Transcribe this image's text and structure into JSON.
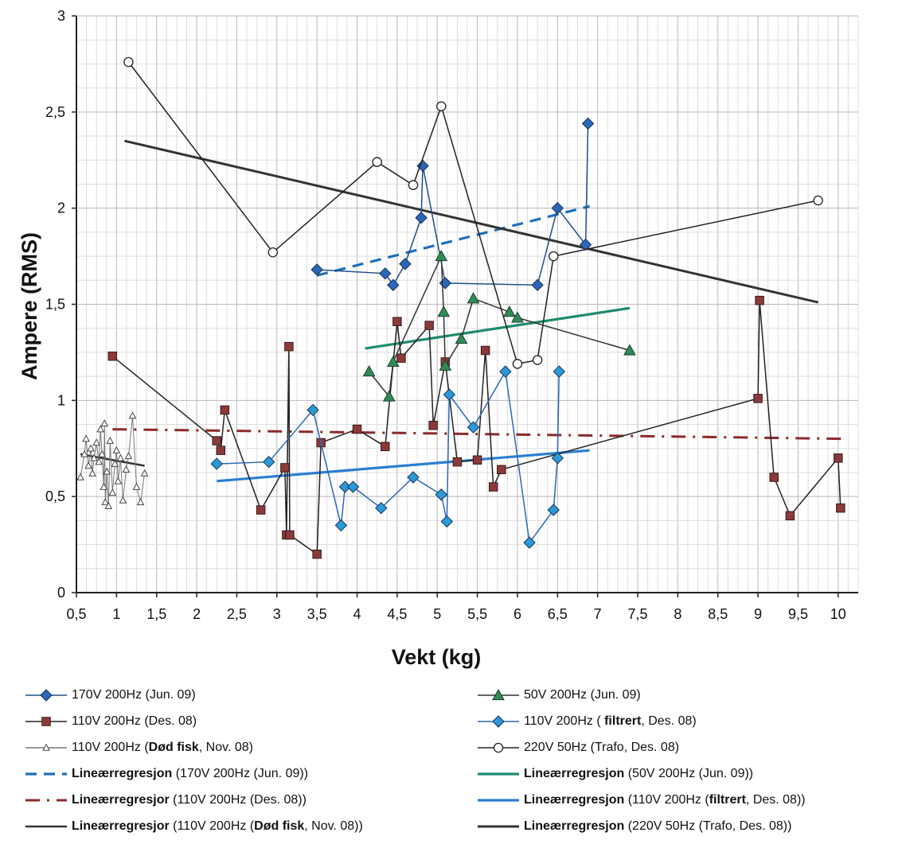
{
  "chart_data": {
    "type": "scatter",
    "title": "",
    "xlabel": "Vekt  (kg)",
    "ylabel": "Ampere (RMS)",
    "xlim": [
      0.5,
      10.25
    ],
    "ylim": [
      0,
      3
    ],
    "x_ticks": [
      "0,5",
      "1",
      "1,5",
      "2",
      "2,5",
      "3",
      "3,5",
      "4",
      "4,5",
      "5",
      "5,5",
      "6",
      "6,5",
      "7",
      "7,5",
      "8",
      "8,5",
      "9",
      "9,5",
      "10"
    ],
    "y_ticks": [
      "0",
      "0,5",
      "1",
      "1,5",
      "2",
      "2,5",
      "3"
    ],
    "grid": true,
    "legend_position": "bottom",
    "series": [
      {
        "id": "s170",
        "color": "#1f4e8c",
        "marker": "diamond",
        "fill": "#2a67b8",
        "points": [
          [
            3.5,
            1.68
          ],
          [
            4.35,
            1.66
          ],
          [
            4.45,
            1.6
          ],
          [
            4.6,
            1.71
          ],
          [
            4.8,
            1.95
          ],
          [
            4.82,
            2.22
          ],
          [
            5.1,
            1.61
          ],
          [
            6.25,
            1.6
          ],
          [
            6.5,
            2.0
          ],
          [
            6.85,
            1.81
          ],
          [
            6.88,
            2.44
          ]
        ]
      },
      {
        "id": "s110",
        "color": "#222222",
        "marker": "square",
        "fill": "#8b3a3a",
        "points": [
          [
            0.95,
            1.23
          ],
          [
            2.25,
            0.79
          ],
          [
            2.3,
            0.74
          ],
          [
            2.35,
            0.95
          ],
          [
            2.8,
            0.43
          ],
          [
            3.1,
            0.65
          ],
          [
            3.12,
            0.3
          ],
          [
            3.15,
            1.28
          ],
          [
            3.16,
            0.3
          ],
          [
            3.5,
            0.2
          ],
          [
            3.55,
            0.78
          ],
          [
            4.0,
            0.85
          ],
          [
            4.35,
            0.76
          ],
          [
            4.5,
            1.41
          ],
          [
            4.55,
            1.22
          ],
          [
            4.9,
            1.39
          ],
          [
            4.95,
            0.87
          ],
          [
            5.1,
            1.2
          ],
          [
            5.25,
            0.68
          ],
          [
            5.5,
            0.69
          ],
          [
            5.6,
            1.26
          ],
          [
            5.7,
            0.55
          ],
          [
            5.8,
            0.64
          ],
          [
            9.0,
            1.01
          ],
          [
            9.02,
            1.52
          ],
          [
            9.2,
            0.6
          ],
          [
            9.4,
            0.4
          ],
          [
            10.0,
            0.7
          ],
          [
            10.03,
            0.44
          ]
        ]
      },
      {
        "id": "sdead",
        "color": "#777777",
        "marker": "triangle-open",
        "fill": "#ffffff",
        "points": [
          [
            0.55,
            0.6
          ],
          [
            0.6,
            0.72
          ],
          [
            0.62,
            0.8
          ],
          [
            0.65,
            0.66
          ],
          [
            0.68,
            0.75
          ],
          [
            0.7,
            0.62
          ],
          [
            0.72,
            0.7
          ],
          [
            0.75,
            0.78
          ],
          [
            0.78,
            0.68
          ],
          [
            0.8,
            0.85
          ],
          [
            0.82,
            0.72
          ],
          [
            0.84,
            0.55
          ],
          [
            0.85,
            0.88
          ],
          [
            0.86,
            0.47
          ],
          [
            0.88,
            0.63
          ],
          [
            0.9,
            0.45
          ],
          [
            0.92,
            0.79
          ],
          [
            0.95,
            0.52
          ],
          [
            0.98,
            0.67
          ],
          [
            1.0,
            0.74
          ],
          [
            1.02,
            0.58
          ],
          [
            1.05,
            0.7
          ],
          [
            1.08,
            0.48
          ],
          [
            1.12,
            0.64
          ],
          [
            1.15,
            0.71
          ],
          [
            1.2,
            0.92
          ],
          [
            1.25,
            0.55
          ],
          [
            1.3,
            0.47
          ],
          [
            1.35,
            0.62
          ]
        ]
      },
      {
        "id": "s50",
        "color": "#333333",
        "marker": "triangle",
        "fill": "#2e8b57",
        "points": [
          [
            4.15,
            1.15
          ],
          [
            4.4,
            1.02
          ],
          [
            4.45,
            1.2
          ],
          [
            5.05,
            1.75
          ],
          [
            5.08,
            1.46
          ],
          [
            5.1,
            1.18
          ],
          [
            5.3,
            1.32
          ],
          [
            5.45,
            1.53
          ],
          [
            5.9,
            1.46
          ],
          [
            6.0,
            1.43
          ],
          [
            7.4,
            1.26
          ]
        ]
      },
      {
        "id": "s110f",
        "color": "#2a67b8",
        "marker": "diamond",
        "fill": "#2a9ad6",
        "points": [
          [
            2.25,
            0.67
          ],
          [
            2.9,
            0.68
          ],
          [
            3.45,
            0.95
          ],
          [
            3.8,
            0.35
          ],
          [
            3.85,
            0.55
          ],
          [
            3.95,
            0.55
          ],
          [
            4.3,
            0.44
          ],
          [
            4.7,
            0.6
          ],
          [
            5.05,
            0.51
          ],
          [
            5.12,
            0.37
          ],
          [
            5.15,
            1.03
          ],
          [
            5.45,
            0.86
          ],
          [
            5.85,
            1.15
          ],
          [
            6.15,
            0.26
          ],
          [
            6.45,
            0.43
          ],
          [
            6.5,
            0.7
          ],
          [
            6.52,
            1.15
          ]
        ]
      },
      {
        "id": "s220",
        "color": "#222222",
        "marker": "circle-open",
        "fill": "#ffffff",
        "points": [
          [
            1.15,
            2.76
          ],
          [
            2.95,
            1.77
          ],
          [
            4.25,
            2.24
          ],
          [
            4.7,
            2.12
          ],
          [
            5.05,
            2.53
          ],
          [
            6.0,
            1.19
          ],
          [
            6.25,
            1.21
          ],
          [
            6.45,
            1.75
          ],
          [
            9.75,
            2.04
          ]
        ]
      }
    ],
    "regressions": [
      {
        "id": "r170",
        "color": "#1f6fb8",
        "dash": "14,9",
        "width": 3.2,
        "from": [
          3.5,
          1.65
        ],
        "to": [
          6.9,
          2.01
        ]
      },
      {
        "id": "r110",
        "color": "#8b2a2a",
        "dash": "18,9,3,9",
        "width": 3,
        "from": [
          0.95,
          0.85
        ],
        "to": [
          10.1,
          0.8
        ]
      },
      {
        "id": "rdead",
        "color": "#333333",
        "dash": "",
        "width": 2.5,
        "from": [
          0.55,
          0.72
        ],
        "to": [
          1.35,
          0.66
        ]
      },
      {
        "id": "r50",
        "color": "#1e8a6e",
        "dash": "",
        "width": 3.2,
        "from": [
          4.1,
          1.27
        ],
        "to": [
          7.4,
          1.48
        ]
      },
      {
        "id": "r110f",
        "color": "#2a7fd4",
        "dash": "",
        "width": 3.2,
        "from": [
          2.25,
          0.58
        ],
        "to": [
          6.9,
          0.74
        ]
      },
      {
        "id": "r220",
        "color": "#333333",
        "dash": "",
        "width": 3,
        "from": [
          1.1,
          2.35
        ],
        "to": [
          9.75,
          1.51
        ]
      }
    ]
  },
  "legend": {
    "items": [
      {
        "id": "s170",
        "parts": [
          {
            "t": "170V 200Hz (Jun. 09)"
          }
        ]
      },
      {
        "id": "s110",
        "parts": [
          {
            "t": "110V 200Hz (Des. 08)"
          }
        ]
      },
      {
        "id": "sdead",
        "parts": [
          {
            "t": "110V 200Hz ("
          },
          {
            "t": "Død fisk",
            "b": true
          },
          {
            "t": ", Nov. 08)"
          }
        ]
      },
      {
        "id": "r170",
        "parts": [
          {
            "t": "Lineærregresjon",
            "b": true
          },
          {
            "t": " (170V 200Hz (Jun. 09))"
          }
        ]
      },
      {
        "id": "r110",
        "parts": [
          {
            "t": "Lineærregresjor",
            "b": true
          },
          {
            "t": " (110V 200Hz (Des. 08))"
          }
        ]
      },
      {
        "id": "rdead",
        "parts": [
          {
            "t": "Lineærregresjor",
            "b": true
          },
          {
            "t": " (110V 200Hz ("
          },
          {
            "t": "Død fisk",
            "b": true
          },
          {
            "t": ", Nov. 08))"
          }
        ]
      },
      {
        "id": "s50",
        "parts": [
          {
            "t": "50V 200Hz (Jun. 09)"
          }
        ]
      },
      {
        "id": "s110f",
        "parts": [
          {
            "t": "110V 200Hz ( "
          },
          {
            "t": "filtrert",
            "b": true
          },
          {
            "t": ", Des. 08)"
          }
        ]
      },
      {
        "id": "s220",
        "parts": [
          {
            "t": "220V 50Hz (Trafo, Des. 08)"
          }
        ]
      },
      {
        "id": "r50",
        "parts": [
          {
            "t": "Lineærregresjon",
            "b": true
          },
          {
            "t": " (50V 200Hz (Jun. 09))"
          }
        ]
      },
      {
        "id": "r110f",
        "parts": [
          {
            "t": "Lineærregresjon",
            "b": true
          },
          {
            "t": " (110V 200Hz ("
          },
          {
            "t": "filtrert",
            "b": true
          },
          {
            "t": ", Des. 08))"
          }
        ]
      },
      {
        "id": "r220",
        "parts": [
          {
            "t": "Lineærregresjon",
            "b": true
          },
          {
            "t": " (220V 50Hz (Trafo, Des. 08))"
          }
        ]
      }
    ]
  }
}
